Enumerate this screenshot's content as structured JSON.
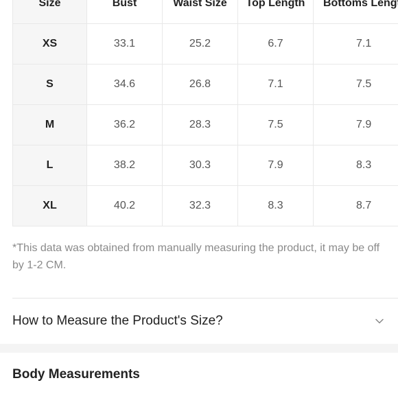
{
  "size_table": {
    "headers": [
      "Size",
      "Bust",
      "Waist Size",
      "Top Length",
      "Bottoms Length"
    ],
    "rows": [
      [
        "XS",
        "33.1",
        "25.2",
        "6.7",
        "7.1"
      ],
      [
        "S",
        "34.6",
        "26.8",
        "7.1",
        "7.5"
      ],
      [
        "M",
        "36.2",
        "28.3",
        "7.5",
        "7.9"
      ],
      [
        "L",
        "38.2",
        "30.3",
        "7.9",
        "8.3"
      ],
      [
        "XL",
        "40.2",
        "32.3",
        "8.3",
        "8.7"
      ]
    ]
  },
  "disclaimer": "*This data was obtained from manually measuring the product, it may be off by 1-2 CM.",
  "how_to_measure": {
    "label": "How to Measure the Product's Size?",
    "icon": "chevron-down-icon"
  },
  "body_measurements": {
    "title": "Body Measurements"
  },
  "colors": {
    "border": "#e8e8e8",
    "size_column_bg": "#f6f6f6",
    "muted_text": "#8a8a8a",
    "section_band": "#f4f4f4"
  }
}
